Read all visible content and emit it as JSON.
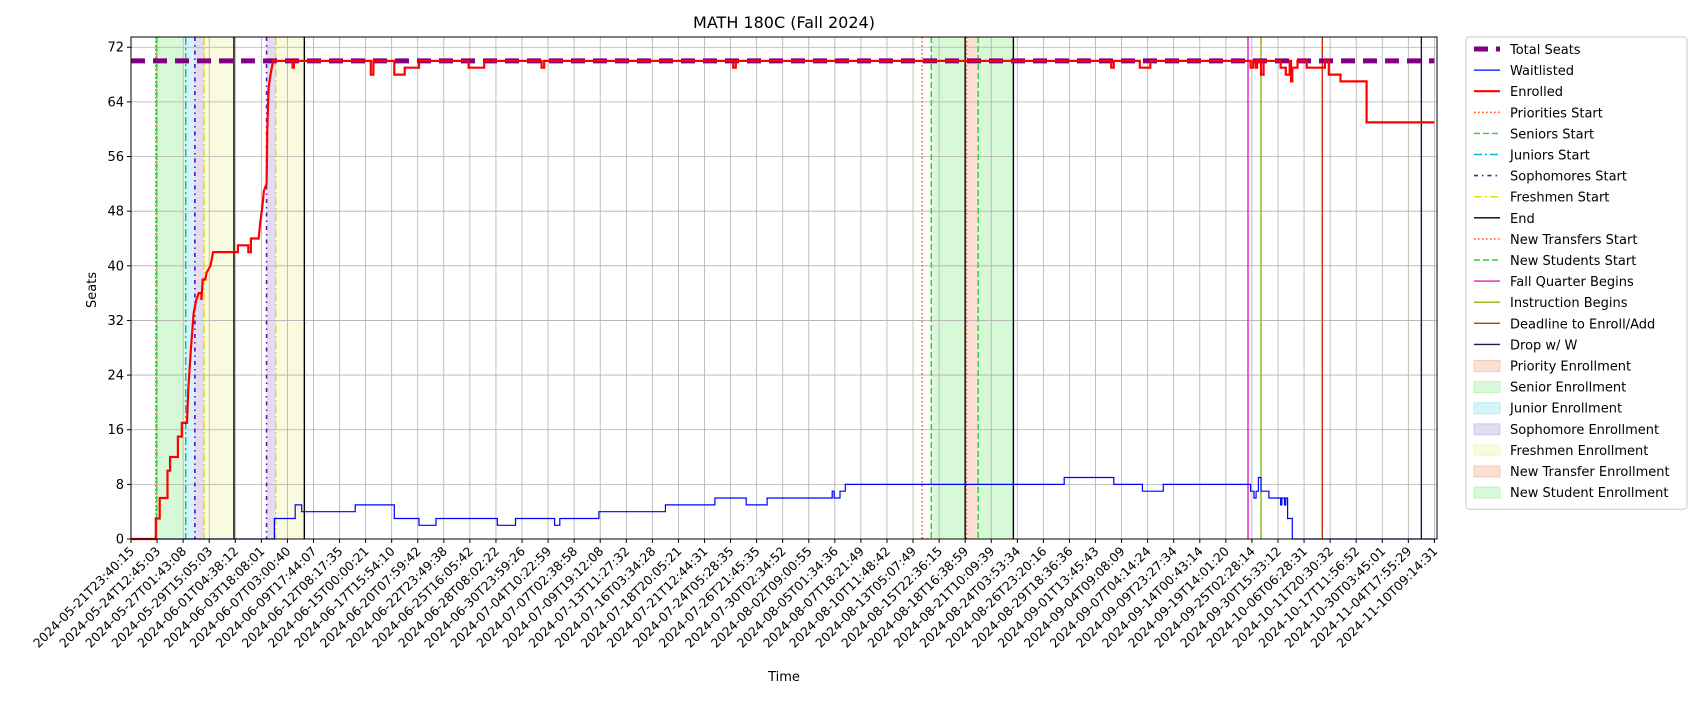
{
  "chart_data": {
    "type": "line",
    "title": "MATH 180C (Fall 2024)",
    "xlabel": "Time",
    "ylabel": "Seats",
    "ylim": [
      0,
      73.5
    ],
    "xlim": [
      "2024-05-21T23:40:15",
      "2024-11-13T09:00:00"
    ],
    "y_ticks": [
      0,
      8,
      16,
      24,
      32,
      40,
      48,
      56,
      64,
      72
    ],
    "x_ticks": [
      "2024-05-21T23:40:15",
      "2024-05-24T12:45:03",
      "2024-05-27T01:43:08",
      "2024-05-29T15:05:03",
      "2024-06-01T04:38:12",
      "2024-06-03T18:08:01",
      "2024-06-07T03:00:40",
      "2024-06-09T17:44:07",
      "2024-06-12T08:17:35",
      "2024-06-15T00:00:21",
      "2024-06-17T15:54:10",
      "2024-06-20T07:59:42",
      "2024-06-22T23:49:38",
      "2024-06-25T16:05:42",
      "2024-06-28T08:02:22",
      "2024-06-30T23:59:26",
      "2024-07-04T10:22:59",
      "2024-07-07T02:38:58",
      "2024-07-09T19:12:08",
      "2024-07-13T11:27:32",
      "2024-07-16T03:34:28",
      "2024-07-18T20:05:21",
      "2024-07-21T12:44:31",
      "2024-07-24T05:28:35",
      "2024-07-26T21:45:35",
      "2024-07-30T02:34:52",
      "2024-08-02T09:00:55",
      "2024-08-05T01:34:36",
      "2024-08-07T18:21:49",
      "2024-08-10T11:48:42",
      "2024-08-13T05:07:49",
      "2024-08-15T22:36:15",
      "2024-08-18T16:38:59",
      "2024-08-21T10:09:39",
      "2024-08-24T03:53:34",
      "2024-08-26T23:20:16",
      "2024-08-29T18:36:36",
      "2024-09-01T13:45:43",
      "2024-09-04T09:08:09",
      "2024-09-07T04:14:24",
      "2024-09-09T23:27:34",
      "2024-09-14T00:43:14",
      "2024-09-19T14:01:20",
      "2024-09-25T02:28:14",
      "2024-09-30T15:33:12",
      "2024-10-06T06:28:31",
      "2024-10-11T20:30:32",
      "2024-10-17T11:56:52",
      "2024-10-30T03:45:01",
      "2024-11-04T17:55:29",
      "2024-11-10T09:14:31"
    ],
    "grid": true,
    "legend_position": "outside right",
    "series": [
      {
        "name": "Total Seats",
        "color": "#800080",
        "style": "dashed-thick",
        "points": [
          [
            0,
            70
          ],
          [
            50,
            70
          ]
        ]
      },
      {
        "name": "Waitlisted",
        "color": "#0000ff",
        "style": "solid-thin",
        "points": [
          [
            0,
            0
          ],
          [
            5.5,
            0
          ],
          [
            5.5,
            3
          ],
          [
            6.3,
            3
          ],
          [
            6.3,
            5
          ],
          [
            6.55,
            5
          ],
          [
            6.55,
            4
          ],
          [
            8.6,
            4
          ],
          [
            8.6,
            5
          ],
          [
            10.1,
            5
          ],
          [
            10.1,
            3
          ],
          [
            11.05,
            3
          ],
          [
            11.05,
            2
          ],
          [
            11.7,
            2
          ],
          [
            11.7,
            3
          ],
          [
            14.05,
            3
          ],
          [
            14.05,
            2
          ],
          [
            14.75,
            2
          ],
          [
            14.75,
            3
          ],
          [
            16.25,
            3
          ],
          [
            16.25,
            2
          ],
          [
            16.45,
            2
          ],
          [
            16.45,
            3
          ],
          [
            17.95,
            3
          ],
          [
            17.95,
            4
          ],
          [
            20.5,
            4
          ],
          [
            20.5,
            5
          ],
          [
            22.4,
            5
          ],
          [
            22.4,
            6
          ],
          [
            23.6,
            6
          ],
          [
            23.6,
            5
          ],
          [
            24.4,
            5
          ],
          [
            24.4,
            6
          ],
          [
            26.9,
            6
          ],
          [
            26.9,
            7
          ],
          [
            26.97,
            7
          ],
          [
            26.97,
            6
          ],
          [
            27.2,
            6
          ],
          [
            27.2,
            7
          ],
          [
            27.4,
            7
          ],
          [
            27.4,
            8
          ],
          [
            35.8,
            8
          ],
          [
            35.8,
            9
          ],
          [
            37.7,
            9
          ],
          [
            37.7,
            8
          ],
          [
            38.8,
            8
          ],
          [
            38.8,
            7
          ],
          [
            39.6,
            7
          ],
          [
            39.6,
            8
          ],
          [
            42.95,
            8
          ],
          [
            42.95,
            7
          ],
          [
            43.08,
            7
          ],
          [
            43.08,
            6
          ],
          [
            43.16,
            6
          ],
          [
            43.16,
            7
          ],
          [
            43.25,
            7
          ],
          [
            43.25,
            9
          ],
          [
            43.35,
            9
          ],
          [
            43.35,
            7
          ],
          [
            43.65,
            7
          ],
          [
            43.65,
            6
          ],
          [
            44.1,
            6
          ],
          [
            44.1,
            5
          ],
          [
            44.15,
            5
          ],
          [
            44.15,
            6
          ],
          [
            44.25,
            6
          ],
          [
            44.25,
            5
          ],
          [
            44.3,
            5
          ],
          [
            44.3,
            6
          ],
          [
            44.37,
            6
          ],
          [
            44.37,
            3
          ],
          [
            44.55,
            3
          ],
          [
            44.55,
            0
          ],
          [
            50,
            0
          ]
        ]
      },
      {
        "name": "Enrolled",
        "color": "#ff0000",
        "style": "solid-thick",
        "points": [
          [
            0,
            0
          ],
          [
            0.95,
            0
          ],
          [
            0.95,
            3
          ],
          [
            1.1,
            3
          ],
          [
            1.1,
            6
          ],
          [
            1.4,
            6
          ],
          [
            1.4,
            10
          ],
          [
            1.5,
            10
          ],
          [
            1.5,
            12
          ],
          [
            1.8,
            12
          ],
          [
            1.8,
            15
          ],
          [
            1.95,
            15
          ],
          [
            1.95,
            17
          ],
          [
            2.15,
            17
          ],
          [
            2.2,
            22
          ],
          [
            2.3,
            28
          ],
          [
            2.4,
            33
          ],
          [
            2.5,
            35
          ],
          [
            2.6,
            36
          ],
          [
            2.7,
            36
          ],
          [
            2.7,
            35
          ],
          [
            2.75,
            38
          ],
          [
            2.85,
            38
          ],
          [
            2.9,
            39
          ],
          [
            3.05,
            40
          ],
          [
            3.15,
            42
          ],
          [
            4.1,
            42
          ],
          [
            4.1,
            43
          ],
          [
            4.5,
            43
          ],
          [
            4.5,
            42
          ],
          [
            4.6,
            42
          ],
          [
            4.6,
            44
          ],
          [
            4.9,
            44
          ],
          [
            4.95,
            46
          ],
          [
            5.05,
            49
          ],
          [
            5.1,
            51
          ],
          [
            5.2,
            52
          ],
          [
            5.23,
            60
          ],
          [
            5.28,
            66
          ],
          [
            5.35,
            68
          ],
          [
            5.45,
            70
          ],
          [
            6.2,
            70
          ],
          [
            6.2,
            69
          ],
          [
            6.25,
            69
          ],
          [
            6.25,
            70
          ],
          [
            9.2,
            70
          ],
          [
            9.2,
            68
          ],
          [
            9.3,
            68
          ],
          [
            9.3,
            70
          ],
          [
            10.1,
            70
          ],
          [
            10.1,
            68
          ],
          [
            10.5,
            68
          ],
          [
            10.5,
            69
          ],
          [
            11.05,
            69
          ],
          [
            11.05,
            70
          ],
          [
            12.95,
            70
          ],
          [
            12.95,
            69
          ],
          [
            13.55,
            69
          ],
          [
            13.55,
            70
          ],
          [
            15.75,
            70
          ],
          [
            15.75,
            69
          ],
          [
            15.85,
            69
          ],
          [
            15.85,
            70
          ],
          [
            23.1,
            70
          ],
          [
            23.1,
            69
          ],
          [
            23.2,
            69
          ],
          [
            23.2,
            70
          ],
          [
            37.6,
            70
          ],
          [
            37.6,
            69
          ],
          [
            37.7,
            69
          ],
          [
            37.7,
            70
          ],
          [
            38.7,
            70
          ],
          [
            38.7,
            69
          ],
          [
            39.1,
            69
          ],
          [
            39.1,
            70
          ],
          [
            42.95,
            70
          ],
          [
            42.95,
            69
          ],
          [
            43.05,
            69
          ],
          [
            43.05,
            70
          ],
          [
            43.15,
            70
          ],
          [
            43.15,
            69
          ],
          [
            43.2,
            69
          ],
          [
            43.2,
            70
          ],
          [
            43.35,
            70
          ],
          [
            43.35,
            68
          ],
          [
            43.45,
            68
          ],
          [
            43.45,
            70
          ],
          [
            44.1,
            70
          ],
          [
            44.1,
            69
          ],
          [
            44.3,
            69
          ],
          [
            44.3,
            68
          ],
          [
            44.45,
            68
          ],
          [
            44.45,
            70
          ],
          [
            44.5,
            70
          ],
          [
            44.5,
            67
          ],
          [
            44.55,
            67
          ],
          [
            44.55,
            69
          ],
          [
            44.75,
            69
          ],
          [
            44.75,
            70
          ],
          [
            45.1,
            70
          ],
          [
            45.1,
            69
          ],
          [
            45.8,
            69
          ],
          [
            45.8,
            70
          ],
          [
            45.95,
            70
          ],
          [
            45.95,
            68
          ],
          [
            46.4,
            68
          ],
          [
            46.4,
            67
          ],
          [
            47.4,
            67
          ],
          [
            47.4,
            61
          ],
          [
            50,
            61
          ]
        ]
      }
    ],
    "event_lines": [
      {
        "name": "Priorities Start",
        "color": "#ff4500",
        "style": "dotted",
        "x": [
          0.95,
          30.35
        ]
      },
      {
        "name": "Seniors Start",
        "color": "#32cd32",
        "style": "dashed",
        "x": [
          0.98,
          30.7
        ]
      },
      {
        "name": "Juniors Start",
        "color": "#00bcd4",
        "style": "dashdot",
        "x": [
          2.1
        ]
      },
      {
        "name": "Sophomores Start",
        "color": "#6a0dad",
        "style": "dashdot-dense",
        "x": [
          2.45,
          5.2
        ]
      },
      {
        "name": "Freshmen Start",
        "color": "#dddd00",
        "style": "dashdot",
        "x": [
          2.8,
          5.55
        ]
      },
      {
        "name": "End",
        "color": "#000000",
        "style": "solid",
        "x": [
          3.95,
          6.65,
          32.0,
          33.85
        ]
      },
      {
        "name": "New Transfers Start",
        "color": "#ff4500",
        "style": "dotted",
        "x": [
          32.05
        ]
      },
      {
        "name": "New Students Start",
        "color": "#32cd32",
        "style": "dashed",
        "x": [
          32.5
        ]
      },
      {
        "name": "Fall Quarter Begins",
        "color": "#e21fb5",
        "style": "solid",
        "x": [
          42.85
        ]
      },
      {
        "name": "Instruction Begins",
        "color": "#8bb800",
        "style": "solid",
        "x": [
          43.35
        ]
      },
      {
        "name": "Deadline to Enroll/Add",
        "color": "#cc3311",
        "style": "solid",
        "x": [
          45.7
        ]
      },
      {
        "name": "Drop w/ W",
        "color": "#1a1a4e",
        "style": "solid",
        "x": [
          49.5
        ]
      }
    ],
    "spans": [
      {
        "name": "Priority Enrollment",
        "color": "#f4a582",
        "spans": [
          [
            0.95,
            0.98
          ]
        ]
      },
      {
        "name": "Senior Enrollment",
        "color": "#90ee90",
        "spans": [
          [
            0.98,
            2.1
          ]
        ]
      },
      {
        "name": "Junior Enrollment",
        "color": "#87e0f0",
        "spans": [
          [
            2.1,
            2.45
          ]
        ]
      },
      {
        "name": "Sophomore Enrollment",
        "color": "#b39ddb",
        "spans": [
          [
            2.45,
            2.8
          ],
          [
            5.2,
            5.55
          ]
        ]
      },
      {
        "name": "Freshmen Enrollment",
        "color": "#f0f0a0",
        "spans": [
          [
            2.8,
            3.95
          ],
          [
            5.55,
            6.65
          ]
        ]
      },
      {
        "name": "New Transfer Enrollment",
        "color": "#f4a582",
        "spans": [
          [
            32.05,
            32.5
          ]
        ]
      },
      {
        "name": "New Student Enrollment",
        "color": "#90ee90",
        "spans": [
          [
            30.7,
            32.0
          ],
          [
            32.5,
            33.85
          ]
        ]
      }
    ],
    "legend": [
      {
        "label": "Total Seats",
        "color": "#800080",
        "kind": "line",
        "style": "dashed-thick"
      },
      {
        "label": "Waitlisted",
        "color": "#0000ff",
        "kind": "line",
        "style": "solid-thin"
      },
      {
        "label": "Enrolled",
        "color": "#ff0000",
        "kind": "line",
        "style": "solid-thick"
      },
      {
        "label": "Priorities Start",
        "color": "#ff4500",
        "kind": "line",
        "style": "dotted"
      },
      {
        "label": "Seniors Start",
        "color": "#32cd32",
        "kind": "line",
        "style": "dashed"
      },
      {
        "label": "Juniors Start",
        "color": "#00bcd4",
        "kind": "line",
        "style": "dashdot"
      },
      {
        "label": "Sophomores Start",
        "color": "#6a0dad",
        "kind": "line",
        "style": "dashdot-dense"
      },
      {
        "label": "Freshmen Start",
        "color": "#dddd00",
        "kind": "line",
        "style": "dashdot"
      },
      {
        "label": "End",
        "color": "#000000",
        "kind": "line",
        "style": "solid"
      },
      {
        "label": "New Transfers Start",
        "color": "#ff4500",
        "kind": "line",
        "style": "dotted"
      },
      {
        "label": "New Students Start",
        "color": "#32cd32",
        "kind": "line",
        "style": "dashed"
      },
      {
        "label": "Fall Quarter Begins",
        "color": "#e21fb5",
        "kind": "line",
        "style": "solid"
      },
      {
        "label": "Instruction Begins",
        "color": "#8bb800",
        "kind": "line",
        "style": "solid"
      },
      {
        "label": "Deadline to Enroll/Add",
        "color": "#cc3311",
        "kind": "line",
        "style": "solid"
      },
      {
        "label": "Drop w/ W",
        "color": "#1a1a4e",
        "kind": "line",
        "style": "solid"
      },
      {
        "label": "Priority Enrollment",
        "color": "#f4a582",
        "kind": "patch"
      },
      {
        "label": "Senior Enrollment",
        "color": "#90ee90",
        "kind": "patch"
      },
      {
        "label": "Junior Enrollment",
        "color": "#87e0f0",
        "kind": "patch"
      },
      {
        "label": "Sophomore Enrollment",
        "color": "#b39ddb",
        "kind": "patch"
      },
      {
        "label": "Freshmen Enrollment",
        "color": "#f0f0a0",
        "kind": "patch"
      },
      {
        "label": "New Transfer Enrollment",
        "color": "#f4a582",
        "kind": "patch"
      },
      {
        "label": "New Student Enrollment",
        "color": "#90ee90",
        "kind": "patch"
      }
    ]
  }
}
